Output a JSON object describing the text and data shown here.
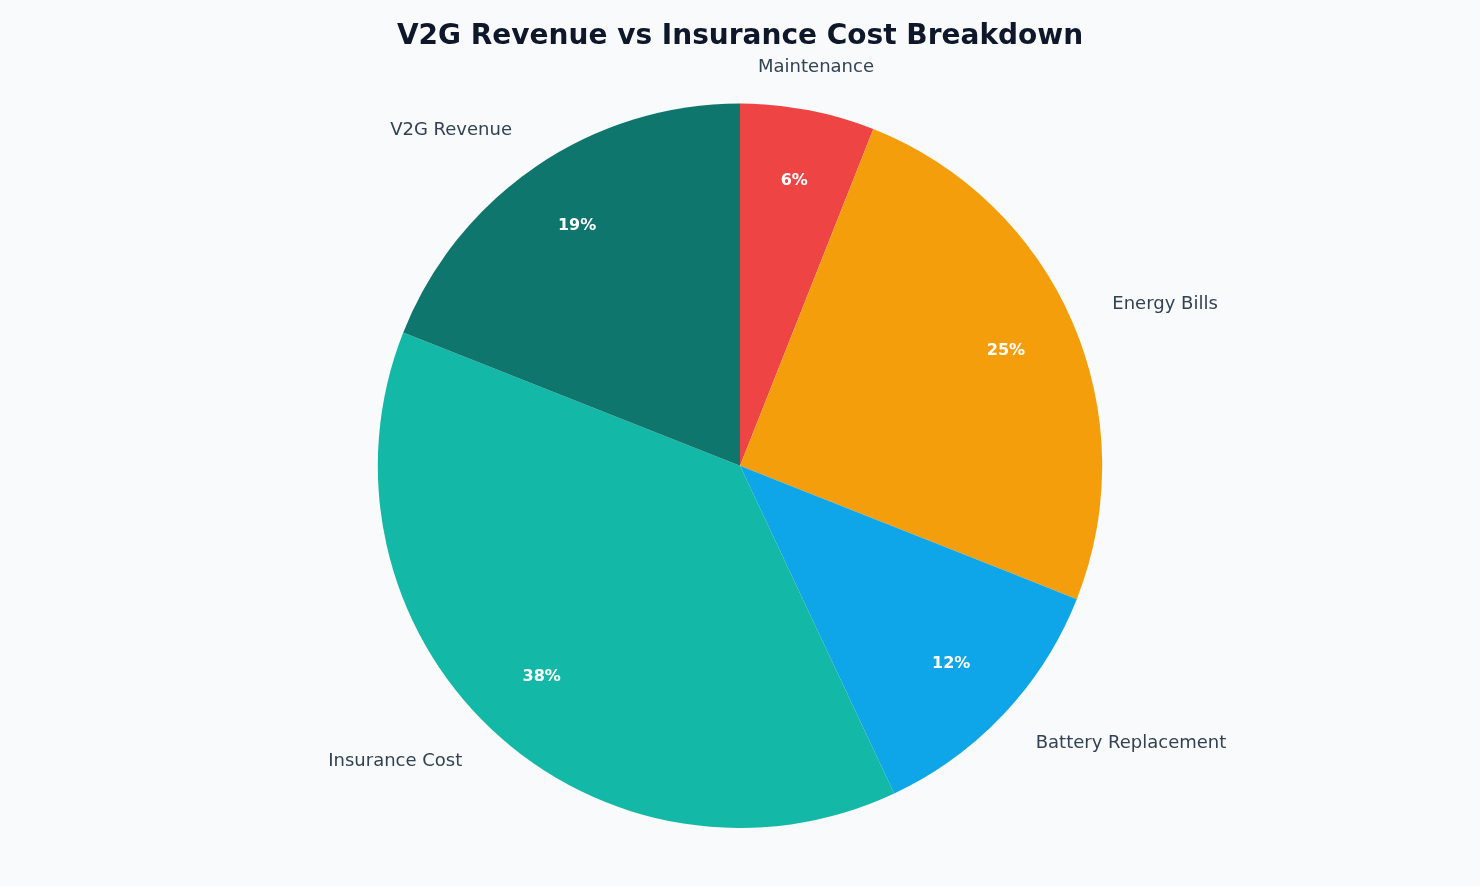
{
  "chart_data": {
    "type": "pie",
    "title": "V2G Revenue vs Insurance Cost Breakdown",
    "categories": [
      "Maintenance",
      "Energy Bills",
      "Battery Replacement",
      "Insurance Cost",
      "V2G Revenue"
    ],
    "values": [
      6,
      25,
      12,
      38,
      19
    ],
    "value_labels": [
      "6%",
      "25%",
      "12%",
      "38%",
      "19%"
    ],
    "colors": [
      "#ef4444",
      "#f59e0b",
      "#0ea5e9",
      "#14b8a6",
      "#0f766e"
    ],
    "legend": false
  }
}
